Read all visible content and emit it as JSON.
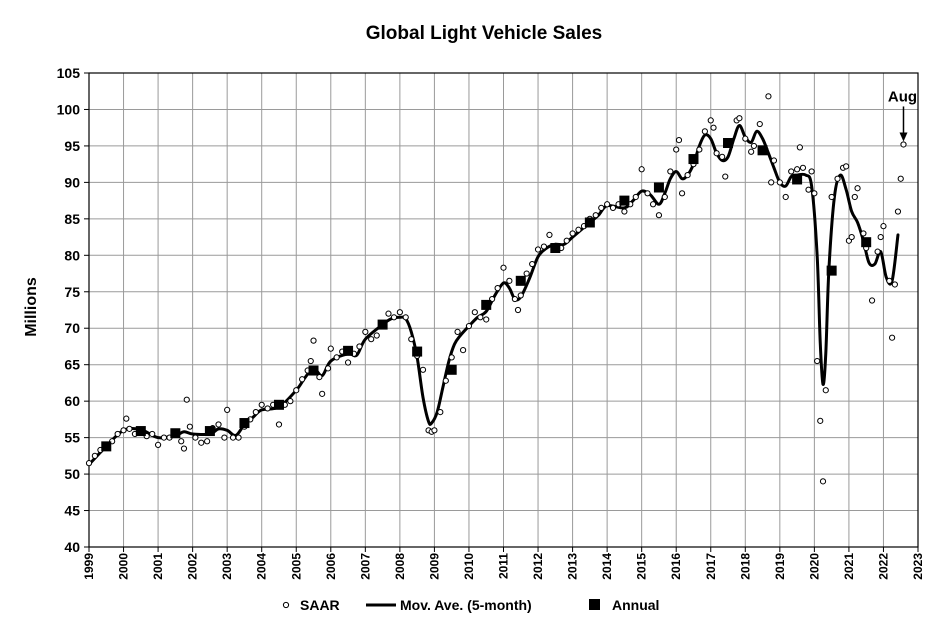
{
  "chart_data": {
    "type": "line",
    "title": "Global Light Vehicle Sales",
    "ylabel": "Millions",
    "xlabel": "",
    "ylim": [
      40,
      105
    ],
    "xlim": [
      1999,
      2023
    ],
    "yticks": [
      40,
      45,
      50,
      55,
      60,
      65,
      70,
      75,
      80,
      85,
      90,
      95,
      100,
      105
    ],
    "xticks": [
      1999,
      2000,
      2001,
      2002,
      2003,
      2004,
      2005,
      2006,
      2007,
      2008,
      2009,
      2010,
      2011,
      2012,
      2013,
      2014,
      2015,
      2016,
      2017,
      2018,
      2019,
      2020,
      2021,
      2022,
      2023
    ],
    "grid": true,
    "legend_position": "bottom",
    "legend": [
      "SAAR",
      "Mov. Ave. (5-month)",
      "Annual"
    ],
    "annotation": {
      "text": "Aug",
      "target": [
        2022.58,
        95.2
      ]
    },
    "series": [
      {
        "name": "SAAR",
        "style": "open-circle",
        "points": [
          [
            1999.0,
            51.5
          ],
          [
            1999.17,
            52.5
          ],
          [
            1999.33,
            53.3
          ],
          [
            1999.5,
            53.8
          ],
          [
            1999.67,
            54.5
          ],
          [
            1999.83,
            55.5
          ],
          [
            2000.0,
            56.0
          ],
          [
            2000.08,
            57.6
          ],
          [
            2000.17,
            56.2
          ],
          [
            2000.33,
            55.5
          ],
          [
            2000.5,
            55.8
          ],
          [
            2000.67,
            55.2
          ],
          [
            2000.83,
            55.5
          ],
          [
            2001.0,
            54.0
          ],
          [
            2001.17,
            55.0
          ],
          [
            2001.33,
            55.0
          ],
          [
            2001.5,
            55.8
          ],
          [
            2001.67,
            54.5
          ],
          [
            2001.75,
            53.5
          ],
          [
            2001.83,
            60.2
          ],
          [
            2001.92,
            56.5
          ],
          [
            2002.08,
            55.0
          ],
          [
            2002.25,
            54.3
          ],
          [
            2002.42,
            54.5
          ],
          [
            2002.58,
            56.3
          ],
          [
            2002.75,
            56.8
          ],
          [
            2002.92,
            55.0
          ],
          [
            2003.0,
            58.8
          ],
          [
            2003.17,
            55.0
          ],
          [
            2003.33,
            55.0
          ],
          [
            2003.5,
            56.5
          ],
          [
            2003.67,
            57.5
          ],
          [
            2003.83,
            58.5
          ],
          [
            2004.0,
            59.5
          ],
          [
            2004.17,
            59.0
          ],
          [
            2004.33,
            59.5
          ],
          [
            2004.5,
            56.8
          ],
          [
            2004.67,
            59.5
          ],
          [
            2004.83,
            60.0
          ],
          [
            2005.0,
            61.5
          ],
          [
            2005.17,
            63.0
          ],
          [
            2005.33,
            64.2
          ],
          [
            2005.42,
            65.5
          ],
          [
            2005.5,
            68.3
          ],
          [
            2005.67,
            63.3
          ],
          [
            2005.75,
            61.0
          ],
          [
            2005.92,
            64.5
          ],
          [
            2006.0,
            67.2
          ],
          [
            2006.17,
            66.0
          ],
          [
            2006.33,
            66.8
          ],
          [
            2006.5,
            65.3
          ],
          [
            2006.67,
            66.5
          ],
          [
            2006.83,
            67.5
          ],
          [
            2007.0,
            69.5
          ],
          [
            2007.17,
            68.5
          ],
          [
            2007.33,
            69.0
          ],
          [
            2007.5,
            70.5
          ],
          [
            2007.67,
            72.0
          ],
          [
            2007.83,
            71.5
          ],
          [
            2008.0,
            72.2
          ],
          [
            2008.17,
            71.5
          ],
          [
            2008.33,
            68.5
          ],
          [
            2008.5,
            66.2
          ],
          [
            2008.67,
            64.3
          ],
          [
            2008.83,
            56.0
          ],
          [
            2008.92,
            55.8
          ],
          [
            2009.0,
            56.0
          ],
          [
            2009.17,
            58.5
          ],
          [
            2009.33,
            62.8
          ],
          [
            2009.5,
            66.0
          ],
          [
            2009.67,
            69.5
          ],
          [
            2009.83,
            67.0
          ],
          [
            2010.0,
            70.3
          ],
          [
            2010.17,
            72.2
          ],
          [
            2010.33,
            71.5
          ],
          [
            2010.5,
            71.2
          ],
          [
            2010.67,
            74.0
          ],
          [
            2010.83,
            75.5
          ],
          [
            2011.0,
            78.3
          ],
          [
            2011.17,
            76.5
          ],
          [
            2011.33,
            74.0
          ],
          [
            2011.42,
            72.5
          ],
          [
            2011.5,
            74.5
          ],
          [
            2011.67,
            77.5
          ],
          [
            2011.83,
            78.8
          ],
          [
            2012.0,
            80.8
          ],
          [
            2012.17,
            81.2
          ],
          [
            2012.33,
            82.8
          ],
          [
            2012.5,
            81.3
          ],
          [
            2012.67,
            81.0
          ],
          [
            2012.83,
            82.0
          ],
          [
            2013.0,
            83.0
          ],
          [
            2013.17,
            83.5
          ],
          [
            2013.33,
            84.0
          ],
          [
            2013.5,
            85.0
          ],
          [
            2013.67,
            85.5
          ],
          [
            2013.83,
            86.5
          ],
          [
            2014.0,
            87.0
          ],
          [
            2014.17,
            86.5
          ],
          [
            2014.33,
            87.0
          ],
          [
            2014.5,
            86.0
          ],
          [
            2014.67,
            87.0
          ],
          [
            2014.83,
            88.0
          ],
          [
            2015.0,
            91.8
          ],
          [
            2015.17,
            88.5
          ],
          [
            2015.33,
            87.0
          ],
          [
            2015.5,
            85.5
          ],
          [
            2015.67,
            88.0
          ],
          [
            2015.83,
            91.5
          ],
          [
            2016.0,
            94.5
          ],
          [
            2016.08,
            95.8
          ],
          [
            2016.17,
            88.5
          ],
          [
            2016.33,
            91.0
          ],
          [
            2016.5,
            92.5
          ],
          [
            2016.67,
            94.5
          ],
          [
            2016.83,
            97.0
          ],
          [
            2017.0,
            98.5
          ],
          [
            2017.08,
            97.5
          ],
          [
            2017.17,
            94.0
          ],
          [
            2017.33,
            93.5
          ],
          [
            2017.42,
            90.8
          ],
          [
            2017.58,
            95.5
          ],
          [
            2017.75,
            98.5
          ],
          [
            2017.83,
            98.8
          ],
          [
            2018.0,
            96.0
          ],
          [
            2018.17,
            94.2
          ],
          [
            2018.25,
            95.0
          ],
          [
            2018.42,
            98.0
          ],
          [
            2018.58,
            94.5
          ],
          [
            2018.67,
            101.8
          ],
          [
            2018.75,
            90.0
          ],
          [
            2018.83,
            93.0
          ],
          [
            2019.0,
            90.0
          ],
          [
            2019.17,
            88.0
          ],
          [
            2019.33,
            91.5
          ],
          [
            2019.5,
            91.8
          ],
          [
            2019.58,
            94.8
          ],
          [
            2019.67,
            92.0
          ],
          [
            2019.83,
            89.0
          ],
          [
            2019.92,
            91.5
          ],
          [
            2020.0,
            88.5
          ],
          [
            2020.08,
            65.5
          ],
          [
            2020.17,
            57.3
          ],
          [
            2020.25,
            49.0
          ],
          [
            2020.33,
            61.5
          ],
          [
            2020.5,
            88.0
          ],
          [
            2020.67,
            90.5
          ],
          [
            2020.83,
            92.0
          ],
          [
            2020.92,
            92.2
          ],
          [
            2021.0,
            82.0
          ],
          [
            2021.08,
            82.5
          ],
          [
            2021.17,
            88.0
          ],
          [
            2021.25,
            89.2
          ],
          [
            2021.42,
            83.0
          ],
          [
            2021.5,
            81.0
          ],
          [
            2021.67,
            73.8
          ],
          [
            2021.83,
            80.5
          ],
          [
            2021.92,
            82.5
          ],
          [
            2022.0,
            84.0
          ],
          [
            2022.17,
            76.5
          ],
          [
            2022.25,
            68.7
          ],
          [
            2022.33,
            76.0
          ],
          [
            2022.42,
            86.0
          ],
          [
            2022.5,
            90.5
          ],
          [
            2022.58,
            95.2
          ]
        ]
      },
      {
        "name": "Mov. Ave. (5-month)",
        "style": "line",
        "points": [
          [
            1999.0,
            51.3
          ],
          [
            1999.5,
            53.8
          ],
          [
            2000.0,
            56.0
          ],
          [
            2000.5,
            56.1
          ],
          [
            2001.0,
            55.0
          ],
          [
            2001.5,
            55.3
          ],
          [
            2001.75,
            55.8
          ],
          [
            2002.0,
            55.5
          ],
          [
            2002.5,
            55.5
          ],
          [
            2002.75,
            56.2
          ],
          [
            2003.0,
            56.0
          ],
          [
            2003.25,
            55.3
          ],
          [
            2003.5,
            56.8
          ],
          [
            2003.75,
            57.8
          ],
          [
            2004.0,
            58.8
          ],
          [
            2004.5,
            59.2
          ],
          [
            2005.0,
            61.5
          ],
          [
            2005.25,
            63.2
          ],
          [
            2005.5,
            64.5
          ],
          [
            2005.75,
            63.5
          ],
          [
            2006.0,
            65.5
          ],
          [
            2006.5,
            66.5
          ],
          [
            2006.75,
            66.3
          ],
          [
            2007.0,
            68.5
          ],
          [
            2007.5,
            70.5
          ],
          [
            2007.75,
            71.3
          ],
          [
            2008.0,
            71.5
          ],
          [
            2008.17,
            71.3
          ],
          [
            2008.33,
            69.5
          ],
          [
            2008.5,
            66.0
          ],
          [
            2008.67,
            60.5
          ],
          [
            2008.83,
            57.2
          ],
          [
            2008.92,
            57.0
          ],
          [
            2009.08,
            58.5
          ],
          [
            2009.25,
            62.0
          ],
          [
            2009.42,
            65.5
          ],
          [
            2009.58,
            67.8
          ],
          [
            2009.75,
            69.0
          ],
          [
            2010.0,
            70.3
          ],
          [
            2010.25,
            71.5
          ],
          [
            2010.5,
            72.3
          ],
          [
            2010.75,
            74.5
          ],
          [
            2011.0,
            76.2
          ],
          [
            2011.17,
            75.5
          ],
          [
            2011.33,
            74.0
          ],
          [
            2011.5,
            74.3
          ],
          [
            2011.75,
            76.8
          ],
          [
            2012.0,
            79.8
          ],
          [
            2012.25,
            81.0
          ],
          [
            2012.5,
            81.5
          ],
          [
            2012.75,
            81.5
          ],
          [
            2013.0,
            82.5
          ],
          [
            2013.25,
            83.5
          ],
          [
            2013.5,
            84.5
          ],
          [
            2013.75,
            85.5
          ],
          [
            2014.0,
            86.8
          ],
          [
            2014.5,
            86.5
          ],
          [
            2014.75,
            87.5
          ],
          [
            2015.0,
            88.8
          ],
          [
            2015.25,
            88.3
          ],
          [
            2015.5,
            87.0
          ],
          [
            2015.67,
            88.5
          ],
          [
            2015.83,
            90.5
          ],
          [
            2016.0,
            91.5
          ],
          [
            2016.17,
            90.5
          ],
          [
            2016.33,
            91.0
          ],
          [
            2016.5,
            92.5
          ],
          [
            2016.67,
            95.0
          ],
          [
            2016.83,
            96.5
          ],
          [
            2017.0,
            96.0
          ],
          [
            2017.17,
            94.0
          ],
          [
            2017.33,
            93.0
          ],
          [
            2017.5,
            93.5
          ],
          [
            2017.67,
            96.0
          ],
          [
            2017.83,
            97.8
          ],
          [
            2018.0,
            96.2
          ],
          [
            2018.17,
            95.5
          ],
          [
            2018.33,
            97.0
          ],
          [
            2018.5,
            96.0
          ],
          [
            2018.67,
            94.0
          ],
          [
            2018.83,
            92.0
          ],
          [
            2019.0,
            90.0
          ],
          [
            2019.17,
            89.5
          ],
          [
            2019.33,
            90.8
          ],
          [
            2019.5,
            91.0
          ],
          [
            2019.75,
            91.0
          ],
          [
            2019.92,
            89.5
          ],
          [
            2020.08,
            80.0
          ],
          [
            2020.17,
            68.0
          ],
          [
            2020.25,
            62.3
          ],
          [
            2020.33,
            66.5
          ],
          [
            2020.42,
            78.0
          ],
          [
            2020.58,
            88.0
          ],
          [
            2020.75,
            91.0
          ],
          [
            2020.92,
            89.0
          ],
          [
            2021.08,
            86.0
          ],
          [
            2021.25,
            84.5
          ],
          [
            2021.42,
            82.0
          ],
          [
            2021.58,
            79.0
          ],
          [
            2021.75,
            78.8
          ],
          [
            2021.92,
            80.5
          ],
          [
            2022.08,
            77.0
          ],
          [
            2022.25,
            76.5
          ],
          [
            2022.42,
            82.8
          ]
        ]
      },
      {
        "name": "Annual",
        "style": "filled-square",
        "points": [
          [
            1999.5,
            53.8
          ],
          [
            2000.5,
            55.9
          ],
          [
            2001.5,
            55.6
          ],
          [
            2002.5,
            55.9
          ],
          [
            2003.5,
            57.0
          ],
          [
            2004.5,
            59.5
          ],
          [
            2005.5,
            64.2
          ],
          [
            2006.5,
            66.9
          ],
          [
            2007.5,
            70.5
          ],
          [
            2008.5,
            66.8
          ],
          [
            2009.5,
            64.3
          ],
          [
            2010.5,
            73.2
          ],
          [
            2011.5,
            76.5
          ],
          [
            2012.5,
            81.0
          ],
          [
            2013.5,
            84.5
          ],
          [
            2014.5,
            87.5
          ],
          [
            2015.5,
            89.3
          ],
          [
            2016.5,
            93.2
          ],
          [
            2017.5,
            95.4
          ],
          [
            2018.5,
            94.4
          ],
          [
            2019.5,
            90.4
          ],
          [
            2020.5,
            77.9
          ],
          [
            2021.5,
            81.8
          ]
        ]
      }
    ]
  }
}
